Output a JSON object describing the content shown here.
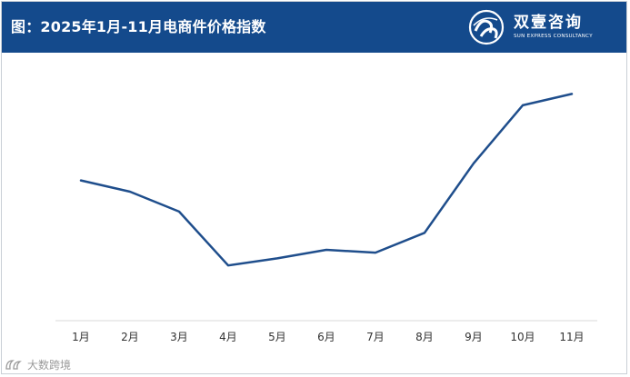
{
  "header": {
    "title": "图：2025年1月-11月电商件价格指数",
    "background": "#144a8c"
  },
  "logo": {
    "name_cn": "双壹咨询",
    "name_en": "SUN EXPRESS CONSULTANCY"
  },
  "watermark": {
    "text": "大数跨境"
  },
  "chart_data": {
    "type": "line",
    "title": "",
    "xlabel": "",
    "ylabel": "",
    "categories": [
      "1月",
      "2月",
      "3月",
      "4月",
      "5月",
      "6月",
      "7月",
      "8月",
      "9月",
      "10月",
      "11月"
    ],
    "series": [
      {
        "values": [
          0.74,
          0.66,
          0.52,
          0.14,
          0.19,
          0.25,
          0.23,
          0.37,
          0.86,
          1.27,
          1.35
        ]
      }
    ],
    "ylim": [
      -0.25,
      1.5
    ],
    "grid": false,
    "y_axis_visible": false,
    "legend": "none",
    "line_color": "#1f4e8c"
  }
}
